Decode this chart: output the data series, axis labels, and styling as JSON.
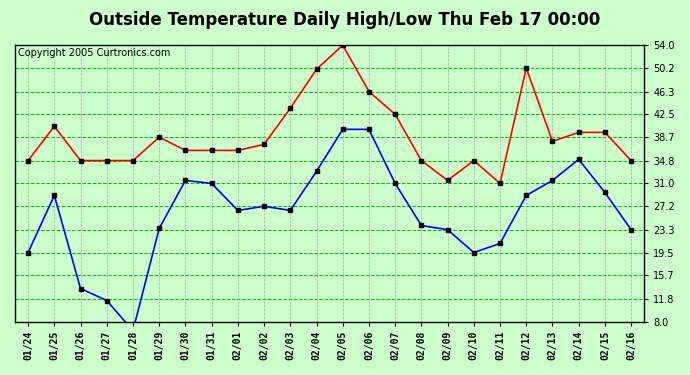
{
  "title": "Outside Temperature Daily High/Low Thu Feb 17 00:00",
  "copyright": "Copyright 2005 Curtronics.com",
  "x_labels": [
    "01/24",
    "01/25",
    "01/26",
    "01/27",
    "01/28",
    "01/29",
    "01/30",
    "01/31",
    "02/01",
    "02/02",
    "02/03",
    "02/04",
    "02/05",
    "02/06",
    "02/07",
    "02/08",
    "02/09",
    "02/10",
    "02/11",
    "02/12",
    "02/13",
    "02/14",
    "02/15",
    "02/16"
  ],
  "high_values": [
    34.8,
    40.5,
    34.8,
    34.8,
    34.8,
    38.7,
    36.5,
    36.5,
    36.5,
    37.5,
    43.5,
    50.0,
    54.0,
    46.3,
    42.5,
    34.8,
    31.5,
    34.8,
    31.0,
    50.2,
    38.0,
    39.5,
    39.5,
    34.8
  ],
  "low_values": [
    19.5,
    29.0,
    13.5,
    11.5,
    6.5,
    23.5,
    31.5,
    31.0,
    26.5,
    27.2,
    26.5,
    33.0,
    40.0,
    40.0,
    31.0,
    24.0,
    23.3,
    19.5,
    21.0,
    29.0,
    31.5,
    35.0,
    29.5,
    23.3
  ],
  "high_color": "#ff0000",
  "low_color": "#0000ff",
  "bg_color": "#ccffcc",
  "hgrid_color": "#00bb00",
  "vgrid_color": "#aaaaaa",
  "y_ticks": [
    8.0,
    11.8,
    15.7,
    19.5,
    23.3,
    27.2,
    31.0,
    34.8,
    38.7,
    42.5,
    46.3,
    50.2,
    54.0
  ],
  "ylim": [
    8.0,
    54.0
  ],
  "markersize": 3,
  "linewidth": 1.2,
  "title_fontsize": 12,
  "tick_fontsize": 7,
  "copyright_fontsize": 7
}
